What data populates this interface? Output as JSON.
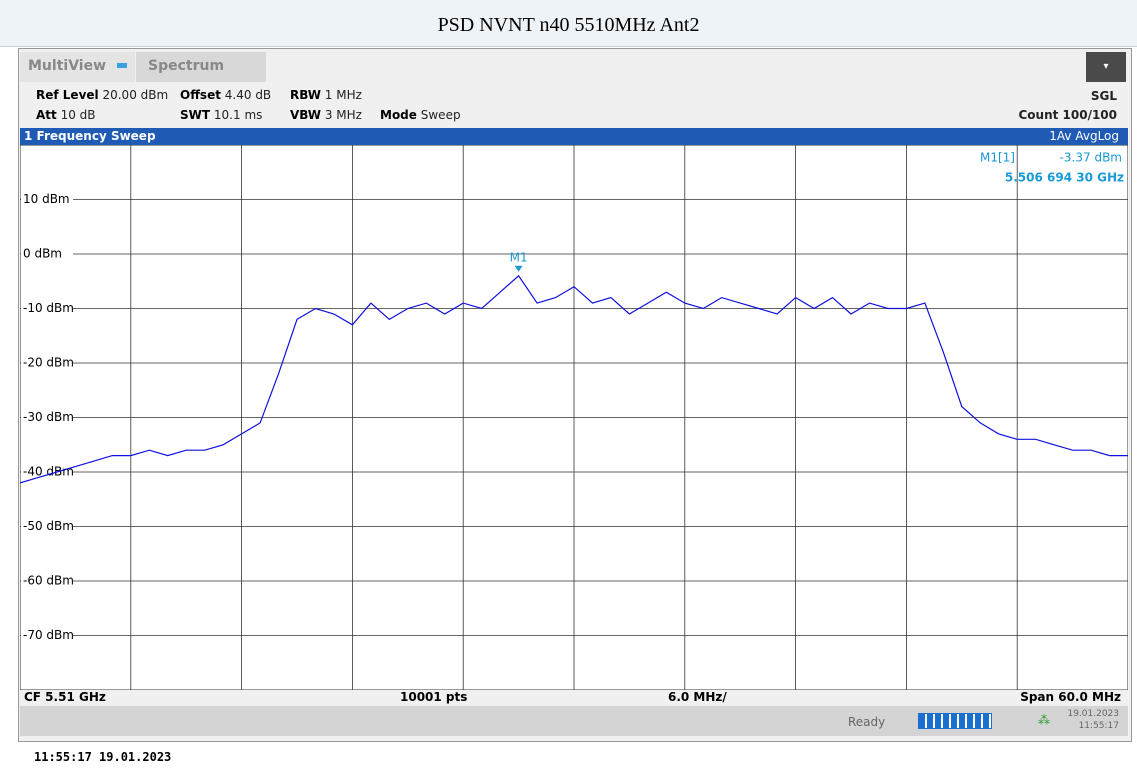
{
  "title": "PSD NVNT n40 5510MHz Ant2",
  "tabs": [
    "MultiView",
    "Spectrum"
  ],
  "settings": [
    {
      "label": "Ref Level",
      "value": "20.00 dBm"
    },
    {
      "label": "Offset",
      "value": "4.40 dB"
    },
    {
      "label": "RBW",
      "value": "1 MHz"
    },
    {
      "label": "Att",
      "value": "10 dB"
    },
    {
      "label": "SWT",
      "value": "10.1 ms"
    },
    {
      "label": "VBW",
      "value": "3 MHz"
    },
    {
      "label": "Mode",
      "value": "Sweep"
    }
  ],
  "right_status": [
    "SGL",
    "Count 100/100"
  ],
  "window_title": "1 Frequency Sweep",
  "trace_label": "1Av AvgLog",
  "marker": {
    "label": "M1",
    "name": "M1[1]",
    "level": "-3.37 dBm",
    "frequency": "5.506 694 30 GHz"
  },
  "chart_data": {
    "type": "line",
    "color": "#1010e0",
    "ylim": [
      -80,
      20
    ],
    "yticks": [
      {
        "value": 10,
        "label": "10 dBm"
      },
      {
        "value": 0,
        "label": "0 dBm"
      },
      {
        "value": -10,
        "label": "-10 dBm"
      },
      {
        "value": -20,
        "label": "-20 dBm"
      },
      {
        "value": -30,
        "label": "-30 dBm"
      },
      {
        "value": -40,
        "label": "-40 dBm"
      },
      {
        "value": -50,
        "label": "-50 dBm"
      },
      {
        "value": -60,
        "label": "-60 dBm"
      },
      {
        "value": -70,
        "label": "-70 dBm"
      }
    ],
    "values": [
      -42,
      -41,
      -40,
      -39,
      -38,
      -37,
      -37,
      -36,
      -37,
      -36,
      -36,
      -35,
      -33,
      -31,
      -22,
      -12,
      -10,
      -11,
      -13,
      -9,
      -12,
      -10,
      -9,
      -11,
      -9,
      -10,
      -7,
      -4,
      -9,
      -8,
      -6,
      -9,
      -8,
      -11,
      -9,
      -7,
      -9,
      -10,
      -8,
      -9,
      -10,
      -11,
      -8,
      -10,
      -8,
      -11,
      -9,
      -10,
      -10,
      -9,
      -18,
      -28,
      -31,
      -33,
      -34,
      -34,
      -35,
      -36,
      -36,
      -37,
      -37
    ]
  },
  "footer": [
    "CF 5.51 GHz",
    "10001 pts",
    "6.0 MHz/",
    "Span 60.0 MHz"
  ],
  "status": {
    "state": "Ready",
    "date": "19.01.2023",
    "time": "11:55:17"
  },
  "timestamp": "11:55:17  19.01.2023"
}
